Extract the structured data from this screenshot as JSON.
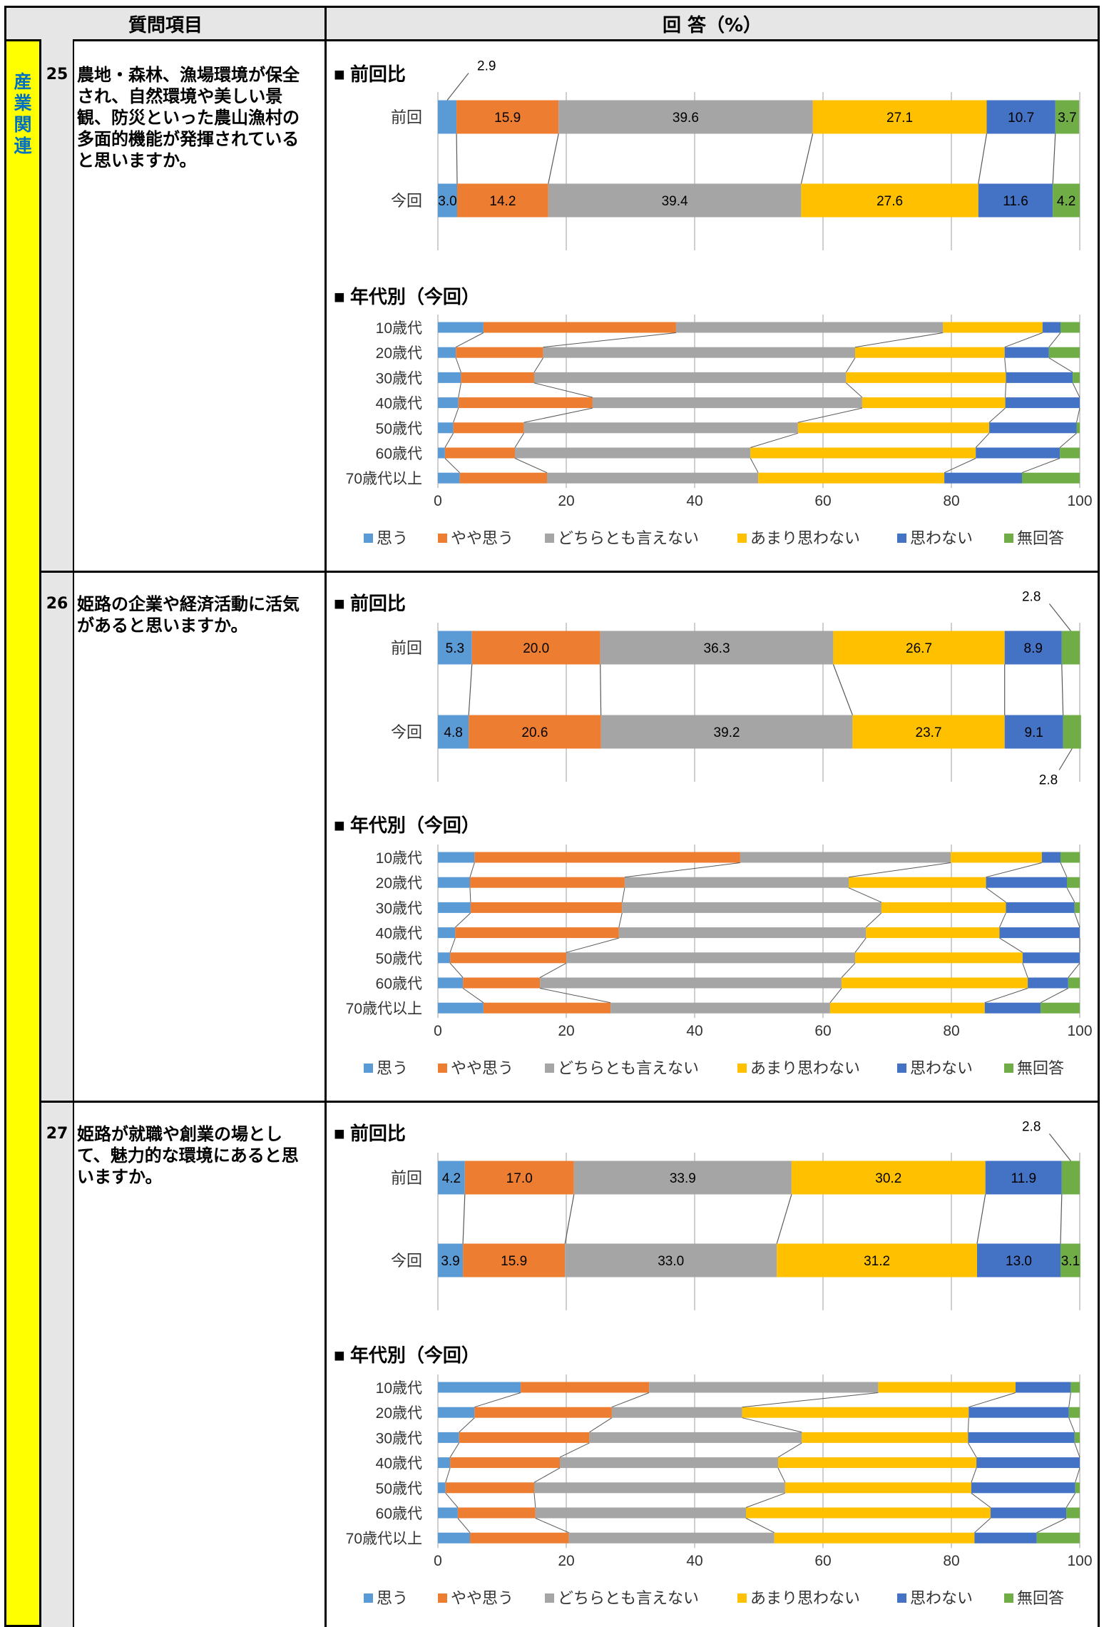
{
  "header": {
    "question_col": "質問項目",
    "answer_col": "回 答（%）"
  },
  "category": {
    "label": "産業関連"
  },
  "legend": [
    "思う",
    "やや思う",
    "どちらとも言えない",
    "あまり思わない",
    "思わない",
    "無回答"
  ],
  "colors": [
    "#5b9bd5",
    "#ed7d31",
    "#a5a5a5",
    "#ffc000",
    "#4472c4",
    "#70ad47"
  ],
  "comparison_title": "■ 前回比",
  "age_title": "■ 年代別（今回）",
  "age_groups": [
    "10歳代",
    "20歳代",
    "30歳代",
    "40歳代",
    "50歳代",
    "60歳代",
    "70歳代以上"
  ],
  "axis_ticks": [
    "0",
    "20",
    "40",
    "60",
    "80",
    "100"
  ],
  "questions": [
    {
      "num": "25",
      "text": "農地・森林、漁場環境が保全され、自然環境や美しい景観、防災といった農山漁村の多面的機能が発揮されていると思いますか。"
    },
    {
      "num": "26",
      "text": "姫路の企業や経済活動に活気があると思いますか。"
    },
    {
      "num": "27",
      "text": "姫路が就職や創業の場として、魅力的な環境にあると思いますか。"
    }
  ],
  "chart_data": [
    {
      "type": "bar",
      "orientation": "horizontal",
      "stacked": "percent",
      "title": "■ 前回比",
      "categories": [
        "前回",
        "今回"
      ],
      "series": [
        {
          "name": "思う",
          "values": [
            2.9,
            3.0
          ]
        },
        {
          "name": "やや思う",
          "values": [
            15.9,
            14.2
          ]
        },
        {
          "name": "どちらとも言えない",
          "values": [
            39.6,
            39.4
          ]
        },
        {
          "name": "あまり思わない",
          "values": [
            27.1,
            27.6
          ]
        },
        {
          "name": "思わない",
          "values": [
            10.7,
            11.6
          ]
        },
        {
          "name": "無回答",
          "values": [
            3.7,
            4.2
          ]
        }
      ],
      "outside_labels": [
        [
          0,
          0
        ]
      ],
      "xlim": [
        0,
        100
      ],
      "grid": true
    },
    {
      "type": "bar",
      "orientation": "horizontal",
      "stacked": "percent",
      "title": "■ 年代別（今回）",
      "categories": [
        "10歳代",
        "20歳代",
        "30歳代",
        "40歳代",
        "50歳代",
        "60歳代",
        "70歳代以上"
      ],
      "series": [
        {
          "name": "思う",
          "values": [
            7.1,
            2.8,
            3.6,
            3.2,
            2.4,
            1.1,
            3.4
          ]
        },
        {
          "name": "やや思う",
          "values": [
            30.0,
            13.6,
            11.4,
            20.9,
            11.0,
            10.9,
            13.6
          ]
        },
        {
          "name": "どちらとも言えない",
          "values": [
            41.6,
            48.6,
            48.6,
            42.0,
            42.7,
            36.7,
            32.9
          ]
        },
        {
          "name": "あまり思わない",
          "values": [
            15.5,
            23.3,
            24.9,
            22.3,
            29.8,
            35.1,
            29.0
          ]
        },
        {
          "name": "思わない",
          "values": [
            2.8,
            6.9,
            10.4,
            11.6,
            13.6,
            13.1,
            12.1
          ]
        },
        {
          "name": "無回答",
          "values": [
            3.0,
            4.8,
            1.1,
            0.0,
            0.5,
            3.1,
            9.0
          ]
        }
      ],
      "xlim": [
        0,
        100
      ],
      "grid": true,
      "legend": "bottom"
    },
    {
      "type": "bar",
      "orientation": "horizontal",
      "stacked": "percent",
      "title": "■ 前回比",
      "categories": [
        "前回",
        "今回"
      ],
      "series": [
        {
          "name": "思う",
          "values": [
            5.3,
            4.8
          ]
        },
        {
          "name": "やや思う",
          "values": [
            20.0,
            20.6
          ]
        },
        {
          "name": "どちらとも言えない",
          "values": [
            36.3,
            39.2
          ]
        },
        {
          "name": "あまり思わない",
          "values": [
            26.7,
            23.7
          ]
        },
        {
          "name": "思わない",
          "values": [
            8.9,
            9.1
          ]
        },
        {
          "name": "無回答",
          "values": [
            2.8,
            2.8
          ]
        }
      ],
      "outside_labels": [
        [
          0,
          5
        ],
        [
          1,
          5
        ]
      ],
      "xlim": [
        0,
        100
      ],
      "grid": true
    },
    {
      "type": "bar",
      "orientation": "horizontal",
      "stacked": "percent",
      "title": "■ 年代別（今回）",
      "categories": [
        "10歳代",
        "20歳代",
        "30歳代",
        "40歳代",
        "50歳代",
        "60歳代",
        "70歳代以上"
      ],
      "series": [
        {
          "name": "思う",
          "values": [
            5.7,
            5.0,
            5.1,
            2.7,
            1.9,
            3.9,
            7.1
          ]
        },
        {
          "name": "やや思う",
          "values": [
            41.4,
            24.1,
            23.6,
            25.5,
            18.1,
            12.0,
            19.8
          ]
        },
        {
          "name": "どちらとも言えない",
          "values": [
            32.8,
            34.9,
            40.4,
            38.5,
            45.0,
            47.0,
            34.2
          ]
        },
        {
          "name": "あまり思わない",
          "values": [
            14.2,
            21.4,
            19.4,
            20.8,
            26.1,
            29.0,
            24.1
          ]
        },
        {
          "name": "思わない",
          "values": [
            2.9,
            12.6,
            10.7,
            12.5,
            8.9,
            6.3,
            8.7
          ]
        },
        {
          "name": "無回答",
          "values": [
            3.0,
            2.0,
            0.8,
            0.0,
            0.0,
            1.8,
            6.1
          ]
        }
      ],
      "xlim": [
        0,
        100
      ],
      "grid": true,
      "legend": "bottom"
    },
    {
      "type": "bar",
      "orientation": "horizontal",
      "stacked": "percent",
      "title": "■ 前回比",
      "categories": [
        "前回",
        "今回"
      ],
      "series": [
        {
          "name": "思う",
          "values": [
            4.2,
            3.9
          ]
        },
        {
          "name": "やや思う",
          "values": [
            17.0,
            15.9
          ]
        },
        {
          "name": "どちらとも言えない",
          "values": [
            33.9,
            33.0
          ]
        },
        {
          "name": "あまり思わない",
          "values": [
            30.2,
            31.2
          ]
        },
        {
          "name": "思わない",
          "values": [
            11.9,
            13.0
          ]
        },
        {
          "name": "無回答",
          "values": [
            2.8,
            3.1
          ]
        }
      ],
      "outside_labels": [
        [
          0,
          5
        ]
      ],
      "xlim": [
        0,
        100
      ],
      "grid": true
    },
    {
      "type": "bar",
      "orientation": "horizontal",
      "stacked": "percent",
      "title": "■ 年代別（今回）",
      "categories": [
        "10歳代",
        "20歳代",
        "30歳代",
        "40歳代",
        "50歳代",
        "60歳代",
        "70歳代以上"
      ],
      "series": [
        {
          "name": "思う",
          "values": [
            12.9,
            5.7,
            3.3,
            1.9,
            1.2,
            3.1,
            5.0
          ]
        },
        {
          "name": "やや思う",
          "values": [
            20.0,
            21.4,
            20.3,
            17.1,
            13.8,
            12.1,
            15.4
          ]
        },
        {
          "name": "どちらとも言えない",
          "values": [
            35.7,
            20.3,
            33.1,
            34.0,
            39.1,
            32.8,
            32.0
          ]
        },
        {
          "name": "あまり思わない",
          "values": [
            21.4,
            35.3,
            25.9,
            30.9,
            29.0,
            38.1,
            31.2
          ]
        },
        {
          "name": "思わない",
          "values": [
            8.6,
            15.6,
            16.6,
            16.1,
            16.2,
            11.8,
            9.7
          ]
        },
        {
          "name": "無回答",
          "values": [
            1.4,
            1.7,
            0.8,
            0.0,
            0.7,
            2.1,
            6.7
          ]
        }
      ],
      "xlim": [
        0,
        100
      ],
      "grid": true,
      "legend": "bottom"
    }
  ]
}
